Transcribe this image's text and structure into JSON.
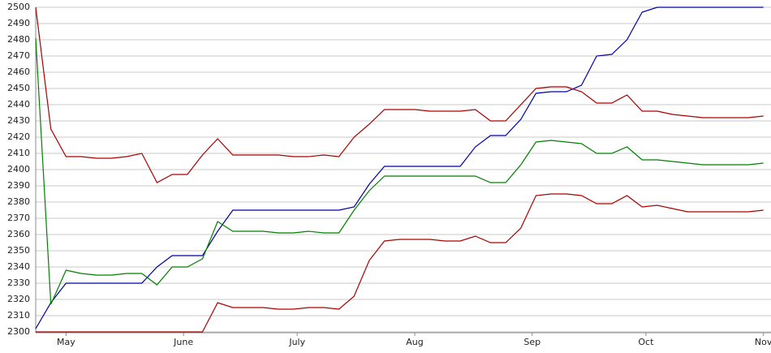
{
  "chart_data": {
    "type": "line",
    "x": [
      -8,
      -4,
      0,
      4,
      8,
      12,
      16,
      20,
      24,
      28,
      32,
      36,
      40,
      44,
      48,
      52,
      56,
      60,
      64,
      68,
      72,
      76,
      80,
      84,
      88,
      92,
      96,
      100,
      104,
      108,
      112,
      116,
      120,
      124,
      128,
      132,
      136,
      140,
      144,
      148,
      152,
      156,
      160,
      164,
      168,
      172,
      176,
      180,
      184
    ],
    "xlim": [
      -8,
      186
    ],
    "xticks": [
      {
        "value": 0,
        "label": "May"
      },
      {
        "value": 31,
        "label": "June"
      },
      {
        "value": 61,
        "label": "July"
      },
      {
        "value": 92,
        "label": "Aug"
      },
      {
        "value": 123,
        "label": "Sep"
      },
      {
        "value": 153,
        "label": "Oct"
      },
      {
        "value": 184,
        "label": "Nov"
      }
    ],
    "ylim": [
      2300,
      2500
    ],
    "yticks": [
      2300,
      2310,
      2320,
      2330,
      2340,
      2350,
      2360,
      2370,
      2380,
      2390,
      2400,
      2410,
      2420,
      2430,
      2440,
      2450,
      2460,
      2470,
      2480,
      2490,
      2500
    ],
    "grid": true,
    "series": [
      {
        "color": "#0000aa",
        "values": [
          2302,
          2318,
          2330,
          2330,
          2330,
          2330,
          2330,
          2330,
          2340,
          2347,
          2347,
          2347,
          2362,
          2375,
          2375,
          2375,
          2375,
          2375,
          2375,
          2375,
          2375,
          2377,
          2391,
          2402,
          2402,
          2402,
          2402,
          2402,
          2402,
          2414,
          2421,
          2421,
          2431,
          2447,
          2448,
          2448,
          2452,
          2470,
          2471,
          2480,
          2497,
          2500,
          2500,
          2500,
          2500,
          2500,
          2500,
          2500,
          2500
        ]
      },
      {
        "color": "#aa0000",
        "values": [
          2500,
          2425,
          2408,
          2408,
          2407,
          2407,
          2408,
          2410,
          2392,
          2397,
          2397,
          2409,
          2419,
          2409,
          2409,
          2409,
          2409,
          2408,
          2408,
          2409,
          2408,
          2420,
          2428,
          2437,
          2437,
          2437,
          2436,
          2436,
          2436,
          2437,
          2430,
          2430,
          2440,
          2450,
          2451,
          2451,
          2448,
          2441,
          2441,
          2446,
          2436,
          2436,
          2434,
          2433,
          2432,
          2432,
          2432,
          2432,
          2433
        ]
      },
      {
        "color": "#008000",
        "values": [
          2481,
          2317,
          2338,
          2336,
          2335,
          2335,
          2336,
          2336,
          2329,
          2340,
          2340,
          2345,
          2368,
          2362,
          2362,
          2362,
          2361,
          2361,
          2362,
          2361,
          2361,
          2375,
          2387,
          2396,
          2396,
          2396,
          2396,
          2396,
          2396,
          2396,
          2392,
          2392,
          2403,
          2417,
          2418,
          2417,
          2416,
          2410,
          2410,
          2414,
          2406,
          2406,
          2405,
          2404,
          2403,
          2403,
          2403,
          2403,
          2404
        ]
      },
      {
        "color": "#aa0000",
        "values": [
          2300,
          2300,
          2300,
          2300,
          2300,
          2300,
          2300,
          2300,
          2300,
          2300,
          2300,
          2300,
          2318,
          2315,
          2315,
          2315,
          2314,
          2314,
          2315,
          2315,
          2314,
          2322,
          2344,
          2356,
          2357,
          2357,
          2357,
          2356,
          2356,
          2359,
          2355,
          2355,
          2364,
          2384,
          2385,
          2385,
          2384,
          2379,
          2379,
          2384,
          2377,
          2378,
          2376,
          2374,
          2374,
          2374,
          2374,
          2374,
          2375
        ]
      }
    ]
  }
}
